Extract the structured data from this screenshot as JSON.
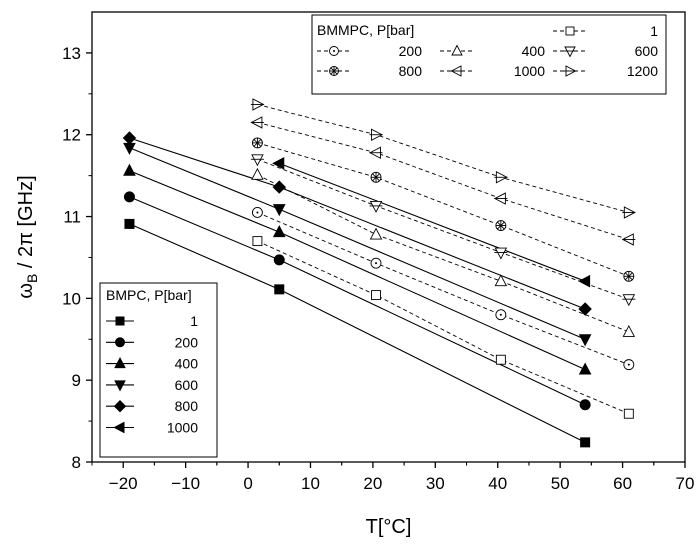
{
  "chart_data": {
    "type": "line",
    "xlabel": "T[°C]",
    "ylabel": "ω_B / 2π [GHz]",
    "xlim": [
      -25,
      70
    ],
    "ylim": [
      8,
      13.5
    ],
    "xticks": [
      -20,
      -10,
      0,
      10,
      20,
      30,
      40,
      50,
      60,
      70
    ],
    "yticks": [
      8,
      9,
      10,
      11,
      12,
      13
    ],
    "grid": false,
    "groups": [
      {
        "legend_title": "BMPC, P[bar]",
        "legend_placement": "bottom-left",
        "line_style": "solid",
        "marker_fill": "filled",
        "series": [
          {
            "name": "1",
            "marker": "square",
            "points": [
              [
                -19,
                10.91
              ],
              [
                5,
                10.11
              ],
              [
                54,
                8.24
              ]
            ]
          },
          {
            "name": "200",
            "marker": "circle",
            "points": [
              [
                -19,
                11.24
              ],
              [
                5,
                10.47
              ],
              [
                54,
                8.7
              ]
            ]
          },
          {
            "name": "400",
            "marker": "triangle-up",
            "points": [
              [
                -19,
                11.56
              ],
              [
                5,
                10.81
              ],
              [
                54,
                9.13
              ]
            ]
          },
          {
            "name": "600",
            "marker": "triangle-down",
            "points": [
              [
                -19,
                11.84
              ],
              [
                5,
                11.09
              ],
              [
                54,
                9.5
              ]
            ]
          },
          {
            "name": "800",
            "marker": "diamond",
            "points": [
              [
                -19,
                11.96
              ],
              [
                5,
                11.36
              ],
              [
                54,
                9.87
              ]
            ]
          },
          {
            "name": "1000",
            "marker": "triangle-left",
            "points": [
              [
                5,
                11.65
              ],
              [
                54,
                10.21
              ]
            ]
          }
        ]
      },
      {
        "legend_title": "BMMPC, P[bar]",
        "legend_placement": "top-right",
        "line_style": "dashed",
        "marker_fill": "open",
        "series": [
          {
            "name": "1",
            "marker": "square",
            "points": [
              [
                1.5,
                10.7
              ],
              [
                20.5,
                10.04
              ],
              [
                40.5,
                9.25
              ],
              [
                61,
                8.59
              ]
            ]
          },
          {
            "name": "200",
            "marker": "circle-dot",
            "points": [
              [
                1.5,
                11.05
              ],
              [
                20.5,
                10.43
              ],
              [
                40.5,
                9.8
              ],
              [
                61,
                9.19
              ]
            ]
          },
          {
            "name": "400",
            "marker": "triangle-up",
            "points": [
              [
                1.5,
                11.51
              ],
              [
                20.5,
                10.78
              ],
              [
                40.5,
                10.21
              ],
              [
                61,
                9.59
              ]
            ]
          },
          {
            "name": "600",
            "marker": "triangle-down-bar",
            "points": [
              [
                1.5,
                11.7
              ],
              [
                20.5,
                11.13
              ],
              [
                40.5,
                10.56
              ],
              [
                61,
                9.99
              ]
            ]
          },
          {
            "name": "800",
            "marker": "circle-x",
            "points": [
              [
                1.5,
                11.9
              ],
              [
                20.5,
                11.48
              ],
              [
                40.5,
                10.89
              ],
              [
                61,
                10.27
              ]
            ]
          },
          {
            "name": "1000",
            "marker": "triangle-left-bar",
            "points": [
              [
                1.5,
                12.15
              ],
              [
                20.5,
                11.78
              ],
              [
                40.5,
                11.22
              ],
              [
                61,
                10.72
              ]
            ]
          },
          {
            "name": "1200",
            "marker": "triangle-right-bar",
            "points": [
              [
                1.5,
                12.37
              ],
              [
                20.5,
                12.0
              ],
              [
                40.5,
                11.48
              ],
              [
                61,
                11.05
              ]
            ]
          }
        ]
      }
    ]
  }
}
